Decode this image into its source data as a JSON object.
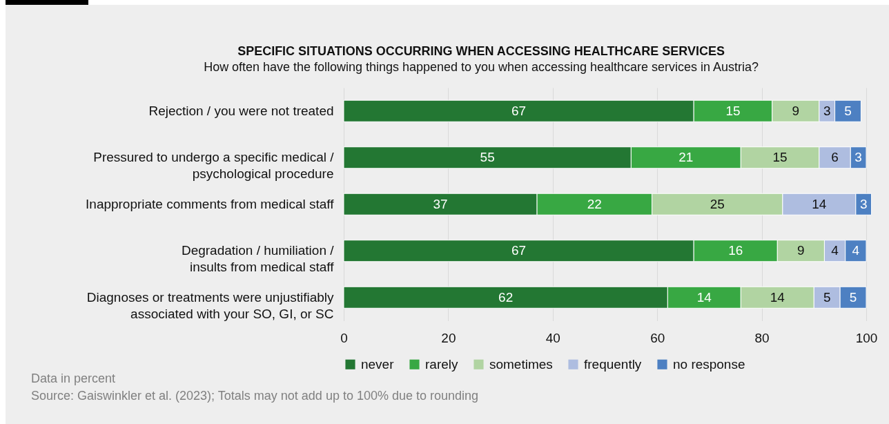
{
  "chart_data": {
    "type": "bar",
    "orientation": "horizontal",
    "stacked": true,
    "title": "SPECIFIC SITUATIONS OCCURRING WHEN ACCESSING HEALTHCARE SERVICES",
    "subtitle": "How often have the following things happened to you when accessing healthcare services in Austria?",
    "categories": [
      "Rejection / you were not treated",
      "Pressured to undergo a specific medical / psychological procedure",
      "Inappropriate comments from medical staff",
      "Degradation / humiliation / insults from medical staff",
      "Diagnoses or treatments were unjustifiably associated with your SO, GI, or SC"
    ],
    "series": [
      {
        "name": "never",
        "color": "#237733",
        "values": [
          67,
          55,
          37,
          67,
          62
        ]
      },
      {
        "name": "rarely",
        "color": "#38a843",
        "values": [
          15,
          21,
          22,
          16,
          14
        ]
      },
      {
        "name": "sometimes",
        "color": "#b1d4a2",
        "values": [
          9,
          15,
          25,
          9,
          14
        ]
      },
      {
        "name": "frequently",
        "color": "#aebde0",
        "values": [
          3,
          6,
          14,
          4,
          5
        ]
      },
      {
        "name": "no response",
        "color": "#4d80c2",
        "values": [
          5,
          3,
          3,
          4,
          5
        ]
      }
    ],
    "xlim": [
      0,
      101
    ],
    "xticks": [
      0,
      20,
      40,
      60,
      80,
      100
    ],
    "grid": "x",
    "legend": "bottom",
    "data_labels": true,
    "annotations": [
      "Data in percent",
      "Source: Gaiswinkler et al. (2023); Totals may not add up to 100% due to rounding"
    ]
  }
}
